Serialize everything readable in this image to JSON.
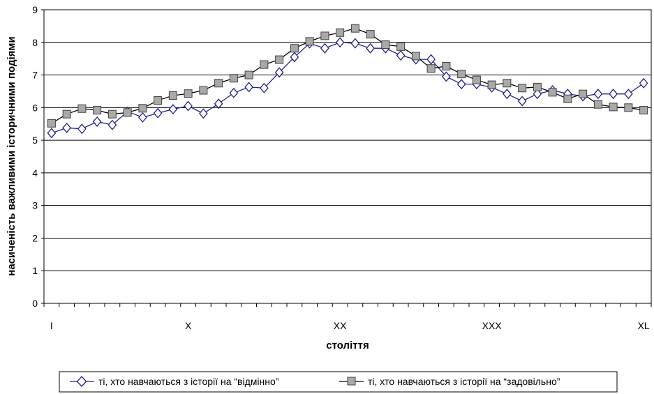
{
  "chart_data": {
    "type": "line",
    "title": "",
    "xlabel": "століття",
    "ylabel": "насиченість важливими історичними подіями",
    "ylim": [
      0,
      9
    ],
    "y_ticks": [
      0,
      1,
      2,
      3,
      4,
      5,
      6,
      7,
      8,
      9
    ],
    "x": [
      1,
      2,
      3,
      4,
      5,
      6,
      7,
      8,
      9,
      10,
      11,
      12,
      13,
      14,
      15,
      16,
      17,
      18,
      19,
      20,
      21,
      22,
      23,
      24,
      25,
      26,
      27,
      28,
      29,
      30,
      31,
      32,
      33,
      34,
      35,
      36,
      37,
      38,
      39,
      40
    ],
    "x_tick_labels": [
      {
        "x": 1,
        "label": "I"
      },
      {
        "x": 10,
        "label": "X"
      },
      {
        "x": 20,
        "label": "XX"
      },
      {
        "x": 30,
        "label": "XXX"
      },
      {
        "x": 40,
        "label": "XL"
      }
    ],
    "grid": "horizontal",
    "legend_position": "bottom",
    "series": [
      {
        "name": "ті, хто навчаються з історії на “відмінно”",
        "marker": "diamond",
        "color": "#1f1f8f",
        "values": [
          5.22,
          5.38,
          5.35,
          5.57,
          5.47,
          5.88,
          5.7,
          5.83,
          5.95,
          6.05,
          5.82,
          6.12,
          6.45,
          6.63,
          6.6,
          7.08,
          7.55,
          7.97,
          7.82,
          8.0,
          7.97,
          7.82,
          7.82,
          7.6,
          7.48,
          7.48,
          6.95,
          6.72,
          6.72,
          6.62,
          6.42,
          6.2,
          6.42,
          6.53,
          6.42,
          6.35,
          6.42,
          6.42,
          6.42,
          6.75
        ]
      },
      {
        "name": "ті, хто навчаються з історії на “задовільно”",
        "marker": "square",
        "color": "#000000",
        "values": [
          5.52,
          5.8,
          5.97,
          5.92,
          5.8,
          5.85,
          5.98,
          6.22,
          6.37,
          6.43,
          6.53,
          6.75,
          6.9,
          7.0,
          7.32,
          7.47,
          7.82,
          8.03,
          8.2,
          8.3,
          8.43,
          8.25,
          7.93,
          7.87,
          7.58,
          7.2,
          7.27,
          7.03,
          6.85,
          6.7,
          6.75,
          6.6,
          6.63,
          6.47,
          6.27,
          6.42,
          6.1,
          6.02,
          6.0,
          5.92
        ]
      }
    ]
  }
}
